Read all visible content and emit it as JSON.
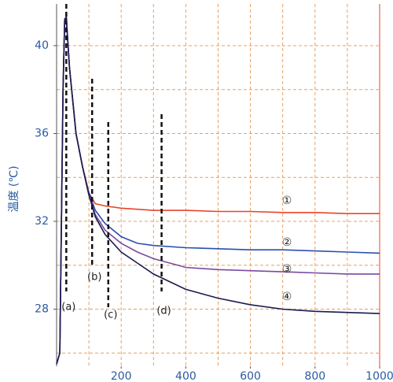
{
  "chart_data": {
    "type": "line",
    "y_label": "温度 (℃)",
    "x": [
      0,
      10,
      20,
      25,
      30,
      40,
      60,
      80,
      100,
      120,
      150,
      200,
      250,
      300,
      400,
      500,
      600,
      700,
      800,
      900,
      1000
    ],
    "series": [
      {
        "name": "①",
        "color": "#e8452a",
        "values": [
          25.5,
          26,
          38,
          41.2,
          41.3,
          39,
          36,
          34.5,
          33.3,
          32.8,
          32.7,
          32.6,
          32.55,
          32.5,
          32.5,
          32.45,
          32.45,
          32.4,
          32.4,
          32.35,
          32.35
        ]
      },
      {
        "name": "②",
        "color": "#2a4fb0",
        "values": [
          25.5,
          26,
          38,
          41.2,
          41.3,
          39,
          36,
          34.5,
          33.3,
          32.5,
          31.9,
          31.3,
          31.0,
          30.9,
          30.8,
          30.75,
          30.7,
          30.7,
          30.65,
          30.6,
          30.55
        ]
      },
      {
        "name": "③",
        "color": "#7a4aa0",
        "values": [
          25.5,
          26,
          38,
          41.2,
          41.3,
          39,
          36,
          34.5,
          33.2,
          32.3,
          31.6,
          31.0,
          30.6,
          30.3,
          29.9,
          29.8,
          29.75,
          29.7,
          29.65,
          29.6,
          29.6
        ]
      },
      {
        "name": "④",
        "color": "#1a1a50",
        "values": [
          25.5,
          26,
          38,
          41.2,
          41.3,
          39,
          36,
          34.5,
          33.2,
          32.2,
          31.4,
          30.6,
          30.1,
          29.6,
          28.9,
          28.5,
          28.2,
          28.0,
          27.9,
          27.85,
          27.8
        ]
      }
    ],
    "annotations": [
      {
        "text": "(a)",
        "x": 30
      },
      {
        "text": "(b)",
        "x": 110
      },
      {
        "text": "(c)",
        "x": 160
      },
      {
        "text": "(d)",
        "x": 325
      }
    ],
    "xlim": [
      0,
      1000
    ],
    "ylim": [
      25.4,
      41.9
    ],
    "xticks": [
      200,
      400,
      600,
      800,
      1000
    ],
    "yticks": [
      28,
      32,
      36,
      40
    ],
    "xgrid": [
      0,
      100,
      200,
      300,
      400,
      500,
      600,
      700,
      800,
      900,
      1000
    ],
    "ygrid": [
      26,
      28,
      30,
      32,
      34,
      36,
      38,
      40
    ],
    "grid": true
  }
}
